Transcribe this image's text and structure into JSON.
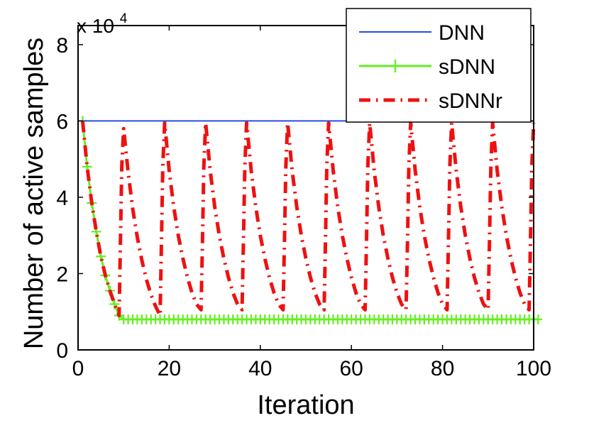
{
  "chart_data": {
    "type": "line",
    "title": "",
    "xlabel": "Iteration",
    "ylabel": "Number of active samples",
    "xlim": [
      0,
      100
    ],
    "ylim": [
      0,
      85000
    ],
    "xticks": [
      0,
      20,
      40,
      60,
      80,
      100
    ],
    "yticks": [
      0,
      2,
      4,
      6,
      8
    ],
    "y_multiplier_base": "x 10",
    "y_multiplier_exp": "4",
    "legend_position": "top-right",
    "series": [
      {
        "name": "DNN",
        "color": "#2b4ce6",
        "style": "solid",
        "x": [
          1,
          100
        ],
        "y": [
          60000,
          60000
        ]
      },
      {
        "name": "sDNN",
        "color": "#66ee22",
        "style": "solid-plus",
        "x": [
          1,
          2,
          3,
          4,
          5,
          6,
          7,
          8,
          9,
          10,
          11,
          12,
          13,
          14,
          15,
          16,
          17,
          18,
          19,
          20,
          21,
          22,
          23,
          24,
          25,
          26,
          27,
          28,
          29,
          30,
          31,
          32,
          33,
          34,
          35,
          36,
          37,
          38,
          39,
          40,
          41,
          42,
          43,
          44,
          45,
          46,
          47,
          48,
          49,
          50,
          51,
          52,
          53,
          54,
          55,
          56,
          57,
          58,
          59,
          60,
          61,
          62,
          63,
          64,
          65,
          66,
          67,
          68,
          69,
          70,
          71,
          72,
          73,
          74,
          75,
          76,
          77,
          78,
          79,
          80,
          81,
          82,
          83,
          84,
          85,
          86,
          87,
          88,
          89,
          90,
          91,
          92,
          93,
          94,
          95,
          96,
          97,
          98,
          99,
          100,
          101
        ],
        "y": [
          60000,
          48000,
          38500,
          31000,
          24500,
          19500,
          15500,
          12000,
          9000,
          8000,
          8000,
          8000,
          8000,
          8000,
          8000,
          8000,
          8000,
          8000,
          8000,
          8000,
          8000,
          8000,
          8000,
          8000,
          8000,
          8000,
          8000,
          8000,
          8000,
          8000,
          8000,
          8000,
          8000,
          8000,
          8000,
          8000,
          8000,
          8000,
          8000,
          8000,
          8000,
          8000,
          8000,
          8000,
          8000,
          8000,
          8000,
          8000,
          8000,
          8000,
          8000,
          8000,
          8000,
          8000,
          8000,
          8000,
          8000,
          8000,
          8000,
          8000,
          8000,
          8000,
          8000,
          8000,
          8000,
          8000,
          8000,
          8000,
          8000,
          8000,
          8000,
          8000,
          8000,
          8000,
          8000,
          8000,
          8000,
          8000,
          8000,
          8000,
          8000,
          8000,
          8000,
          8000,
          8000,
          8000,
          8000,
          8000,
          8000,
          8000,
          8000,
          8000,
          8000,
          8000,
          8000,
          8000,
          8000,
          8000,
          8000,
          8000,
          8000
        ]
      },
      {
        "name": "sDNNr",
        "color": "#ee1111",
        "style": "dash-dot",
        "x": [
          1,
          2,
          3,
          4,
          5,
          6,
          7,
          8,
          9,
          9.3,
          9.6,
          10,
          11,
          12,
          13,
          14,
          15,
          16,
          17,
          18,
          18.3,
          18.6,
          19,
          20,
          21,
          22,
          23,
          24,
          25,
          26,
          27,
          27.3,
          27.6,
          28,
          29,
          30,
          31,
          32,
          33,
          34,
          35,
          36,
          36.3,
          36.6,
          37,
          38,
          39,
          40,
          41,
          42,
          43,
          44,
          45,
          45.3,
          45.6,
          46,
          47,
          48,
          49,
          50,
          51,
          52,
          53,
          54,
          54.3,
          54.6,
          55,
          56,
          57,
          58,
          59,
          60,
          61,
          62,
          63,
          63.3,
          63.6,
          64,
          65,
          66,
          67,
          68,
          69,
          70,
          71,
          72,
          72.3,
          72.6,
          73,
          74,
          75,
          76,
          77,
          78,
          79,
          80,
          81,
          81.3,
          81.6,
          82,
          83,
          84,
          85,
          86,
          87,
          88,
          89,
          90,
          90.3,
          90.6,
          91,
          92,
          93,
          94,
          95,
          96,
          97,
          98,
          99,
          99.3,
          99.6,
          100
        ],
        "y": [
          60000,
          48000,
          38500,
          31000,
          24500,
          19500,
          15500,
          12000,
          9000,
          28000,
          48000,
          58000,
          46500,
          37000,
          29500,
          23500,
          18500,
          14500,
          11500,
          9000,
          28000,
          48000,
          59500,
          47000,
          37500,
          30000,
          24000,
          19000,
          15000,
          12000,
          10500,
          28000,
          48000,
          59500,
          47000,
          37500,
          30000,
          24000,
          19000,
          15000,
          12000,
          10500,
          28000,
          48000,
          59500,
          47000,
          37500,
          30000,
          24000,
          19000,
          15000,
          12000,
          10500,
          28000,
          48000,
          59500,
          47000,
          37500,
          30000,
          24000,
          19000,
          15000,
          12000,
          10500,
          28000,
          48000,
          59500,
          47000,
          37500,
          30000,
          24000,
          19000,
          15000,
          12000,
          10500,
          28000,
          48000,
          59500,
          47000,
          37500,
          30000,
          24000,
          19000,
          15000,
          12000,
          10500,
          28000,
          48000,
          59500,
          47000,
          37500,
          30000,
          24000,
          19000,
          15000,
          12000,
          10500,
          28000,
          48000,
          59500,
          47000,
          37500,
          30000,
          24000,
          19000,
          15000,
          12000,
          10500,
          28000,
          48000,
          59500,
          47000,
          37500,
          30000,
          24000,
          19000,
          15000,
          12000,
          10500,
          28000,
          48000,
          59500
        ]
      }
    ]
  }
}
